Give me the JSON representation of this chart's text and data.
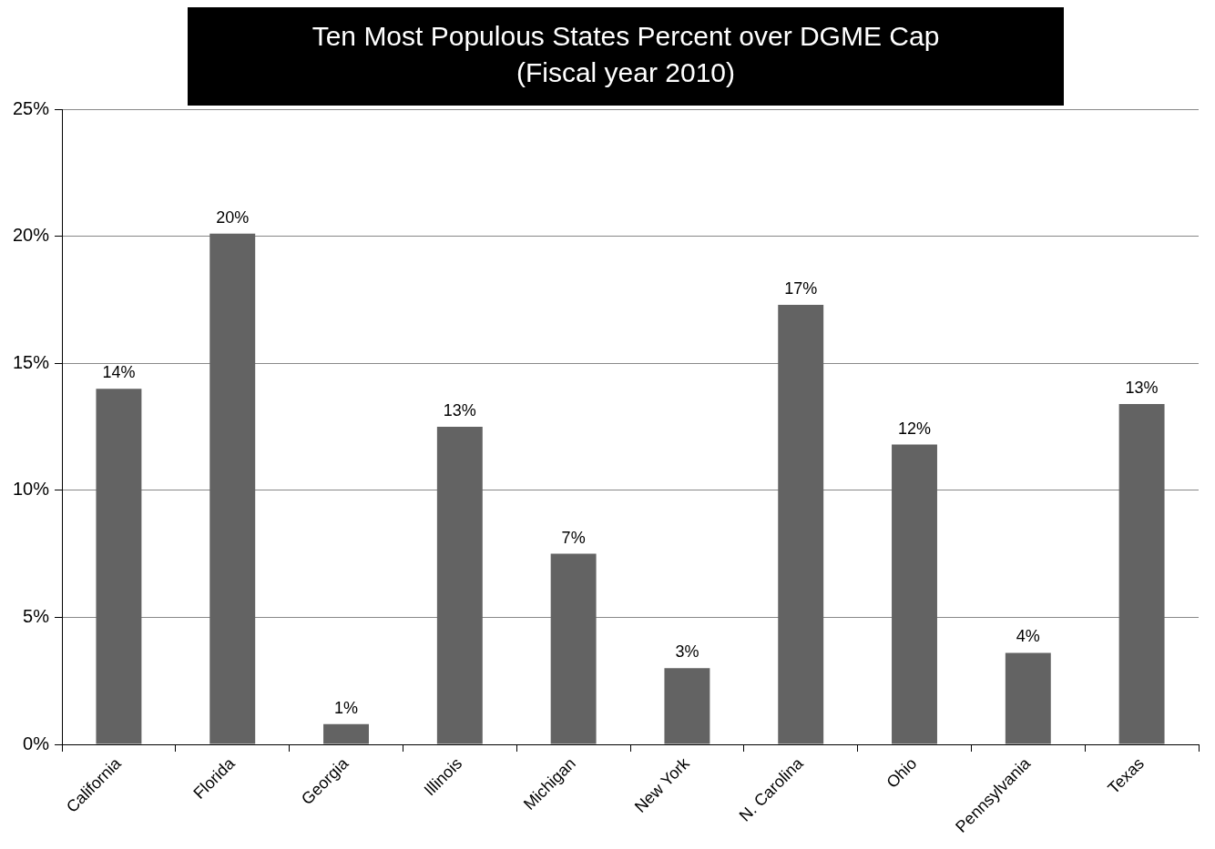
{
  "chart_data": {
    "type": "bar",
    "title": "Ten Most Populous States Percent over DGME Cap",
    "subtitle": "(Fiscal year 2010)",
    "categories": [
      "California",
      "Florida",
      "Georgia",
      "Illinois",
      "Michigan",
      "New York",
      "N. Carolina",
      "Ohio",
      "Pennsylvania",
      "Texas"
    ],
    "values": [
      14.0,
      20.1,
      0.8,
      12.5,
      7.5,
      3.0,
      17.3,
      11.8,
      3.6,
      13.4
    ],
    "value_labels": [
      "14%",
      "20%",
      "1%",
      "13%",
      "7%",
      "3%",
      "17%",
      "12%",
      "4%",
      "13%"
    ],
    "color": "#636363",
    "ylim": [
      0,
      25
    ],
    "yticks": [
      {
        "value": 0,
        "label": "0%"
      },
      {
        "value": 5,
        "label": "5%"
      },
      {
        "value": 10,
        "label": "10%"
      },
      {
        "value": 15,
        "label": "15%"
      },
      {
        "value": 20,
        "label": "20%"
      },
      {
        "value": 25,
        "label": "25%"
      }
    ],
    "grid": "y",
    "legend": false
  }
}
